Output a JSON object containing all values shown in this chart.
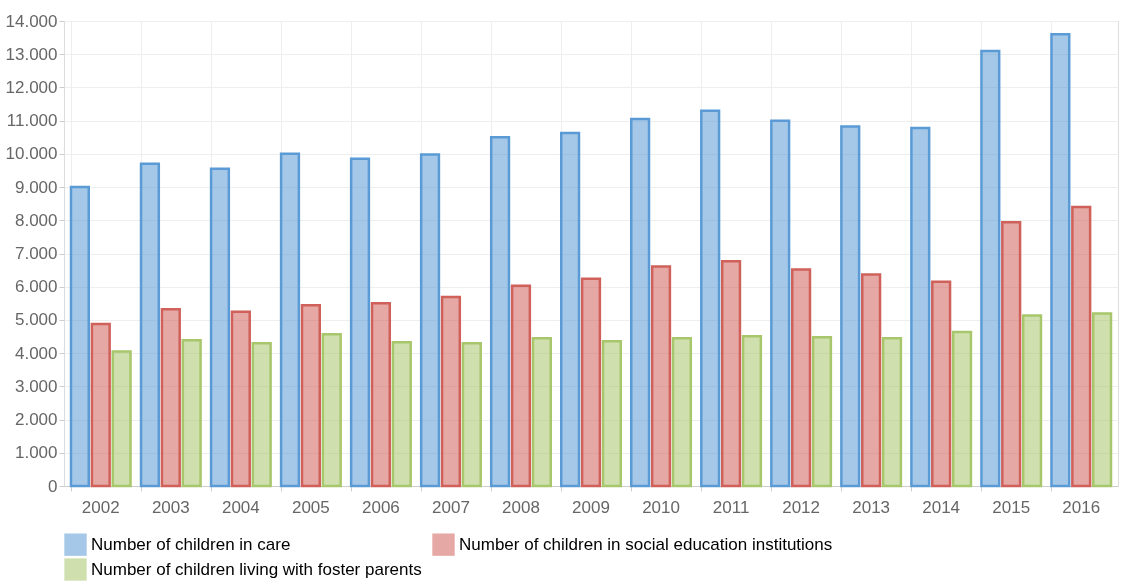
{
  "chart_data": {
    "type": "bar",
    "categories": [
      "2002",
      "2003",
      "2004",
      "2005",
      "2006",
      "2007",
      "2008",
      "2009",
      "2010",
      "2011",
      "2012",
      "2013",
      "2014",
      "2015",
      "2016"
    ],
    "series": [
      {
        "name": "Number of children in care",
        "color": "#5b9bd5",
        "values": [
          9000,
          9700,
          9550,
          10000,
          9850,
          9980,
          10500,
          10630,
          11050,
          11300,
          11000,
          10820,
          10780,
          13100,
          13600
        ]
      },
      {
        "name": "Number of children in social education institutions",
        "color": "#d0605a",
        "values": [
          4880,
          5320,
          5250,
          5440,
          5500,
          5690,
          6030,
          6240,
          6610,
          6770,
          6520,
          6370,
          6150,
          7940,
          8400
        ]
      },
      {
        "name": "Number of children living with foster parents",
        "color": "#a8c66b",
        "values": [
          4050,
          4390,
          4300,
          4570,
          4330,
          4300,
          4450,
          4360,
          4450,
          4510,
          4480,
          4450,
          4640,
          5130,
          5190
        ]
      }
    ],
    "ylim": [
      0,
      14000
    ],
    "yticks": [
      {
        "value": 0,
        "label": "0"
      },
      {
        "value": 1000,
        "label": "1.000"
      },
      {
        "value": 2000,
        "label": "2.000"
      },
      {
        "value": 3000,
        "label": "3.000"
      },
      {
        "value": 4000,
        "label": "4.000"
      },
      {
        "value": 5000,
        "label": "5.000"
      },
      {
        "value": 6000,
        "label": "6.000"
      },
      {
        "value": 7000,
        "label": "7.000"
      },
      {
        "value": 8000,
        "label": "8.000"
      },
      {
        "value": 9000,
        "label": "9.000"
      },
      {
        "value": 10000,
        "label": "10.000"
      },
      {
        "value": 11000,
        "label": "11.000"
      },
      {
        "value": 12000,
        "label": "12.000"
      },
      {
        "value": 13000,
        "label": "13.000"
      },
      {
        "value": 14000,
        "label": "14.000"
      }
    ],
    "grid": true,
    "legend": "bottom"
  }
}
